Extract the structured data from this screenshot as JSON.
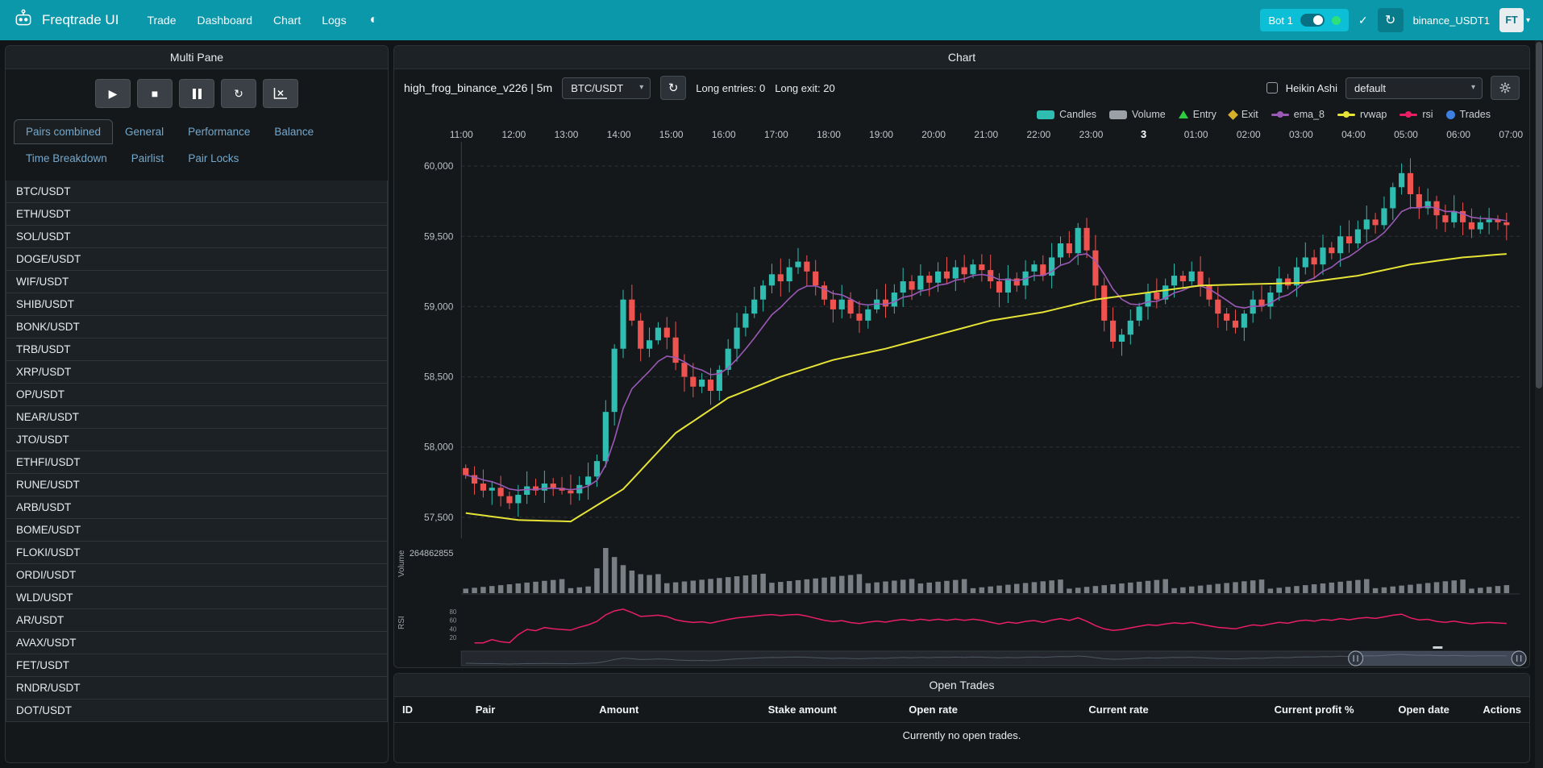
{
  "navbar": {
    "brand": "Freqtrade UI",
    "items": [
      {
        "label": "Trade"
      },
      {
        "label": "Dashboard"
      },
      {
        "label": "Chart"
      },
      {
        "label": "Logs"
      }
    ],
    "bot": {
      "name": "Bot 1"
    },
    "exchange_label": "binance_USDT1",
    "avatar_label": "FT"
  },
  "icons": {
    "theme_toggle": "◐",
    "check": "✓",
    "refresh": "↻",
    "caret": "▾",
    "play": "▶",
    "stop": "■"
  },
  "left_panel": {
    "title": "Multi Pane",
    "tabs_row1": [
      "Pairs combined",
      "General",
      "Performance",
      "Balance"
    ],
    "tabs_row2": [
      "Time Breakdown",
      "Pairlist",
      "Pair Locks"
    ],
    "active_tab": "Pairs combined",
    "pairs": [
      "BTC/USDT",
      "ETH/USDT",
      "SOL/USDT",
      "DOGE/USDT",
      "WIF/USDT",
      "SHIB/USDT",
      "BONK/USDT",
      "TRB/USDT",
      "XRP/USDT",
      "OP/USDT",
      "NEAR/USDT",
      "JTO/USDT",
      "ETHFI/USDT",
      "RUNE/USDT",
      "ARB/USDT",
      "BOME/USDT",
      "FLOKI/USDT",
      "ORDI/USDT",
      "WLD/USDT",
      "AR/USDT",
      "AVAX/USDT",
      "FET/USDT",
      "RNDR/USDT",
      "DOT/USDT"
    ]
  },
  "chart_panel": {
    "title": "Chart",
    "strategy": "high_frog_binance_v226 | 5m",
    "pair_select": "BTC/USDT",
    "long_entries": "Long entries: 0",
    "long_exit": "Long exit: 20",
    "heikin_ashi_label": "Heikin Ashi",
    "plot_config_select": "default",
    "legend": [
      {
        "label": "Candles",
        "shape": "rect",
        "color": "#2ebdb0"
      },
      {
        "label": "Volume",
        "shape": "rect",
        "color": "#9aa0a6"
      },
      {
        "label": "Entry",
        "shape": "triangle",
        "color": "#2ecc40"
      },
      {
        "label": "Exit",
        "shape": "diamond",
        "color": "#d4b02b"
      },
      {
        "label": "ema_8",
        "shape": "line",
        "color": "#9b59b6"
      },
      {
        "label": "rvwap",
        "shape": "line",
        "color": "#e6e337"
      },
      {
        "label": "rsi",
        "shape": "line",
        "color": "#e91e63"
      },
      {
        "label": "Trades",
        "shape": "circle",
        "color": "#3f7fe0"
      }
    ]
  },
  "chart_data": {
    "type": "candlestick",
    "pair": "BTC/USDT",
    "timeframe": "5m",
    "x_labels": [
      "11:00",
      "12:00",
      "13:00",
      "14:00",
      "15:00",
      "16:00",
      "17:00",
      "18:00",
      "19:00",
      "20:00",
      "21:00",
      "22:00",
      "23:00",
      "3",
      "01:00",
      "02:00",
      "03:00",
      "04:00",
      "05:00",
      "06:00",
      "07:00"
    ],
    "y_ticks": [
      57500,
      58000,
      58500,
      59000,
      59500,
      60000
    ],
    "ylim": [
      57350,
      60150
    ],
    "open_first": 57850,
    "closes": [
      57800,
      57740,
      57690,
      57710,
      57650,
      57600,
      57660,
      57720,
      57690,
      57740,
      57710,
      57690,
      57670,
      57730,
      57790,
      57900,
      58250,
      58700,
      59050,
      58900,
      58700,
      58760,
      58850,
      58780,
      58600,
      58500,
      58430,
      58480,
      58400,
      58550,
      58700,
      58850,
      58950,
      59050,
      59150,
      59230,
      59180,
      59280,
      59320,
      59250,
      59150,
      59050,
      58980,
      59050,
      58950,
      58900,
      58980,
      59050,
      59000,
      59100,
      59180,
      59120,
      59220,
      59170,
      59250,
      59200,
      59280,
      59230,
      59300,
      59260,
      59180,
      59100,
      59200,
      59150,
      59250,
      59300,
      59220,
      59350,
      59450,
      59380,
      59560,
      59400,
      59150,
      58900,
      58750,
      58800,
      58900,
      59000,
      59100,
      59050,
      59150,
      59220,
      59180,
      59250,
      59150,
      59050,
      58950,
      58900,
      58850,
      58950,
      59050,
      59000,
      59100,
      59200,
      59150,
      59280,
      59350,
      59300,
      59420,
      59380,
      59500,
      59450,
      59550,
      59620,
      59580,
      59700,
      59850,
      59950,
      59800,
      59700,
      59750,
      59650,
      59600,
      59680,
      59600,
      59550,
      59600,
      59620,
      59600,
      59580
    ],
    "rvwap_hourly": [
      57530,
      57480,
      57470,
      57700,
      58100,
      58350,
      58500,
      58620,
      58700,
      58800,
      58900,
      58960,
      59050,
      59100,
      59150,
      59160,
      59170,
      59220,
      59300,
      59350,
      59380
    ],
    "volume_axis_label": "264862855",
    "volume_label": "Volume",
    "rsi_label": "RSI",
    "rsi_ticks": [
      80,
      60,
      40,
      20
    ],
    "series_colors": {
      "up": "#2ebdb0",
      "down": "#ef5350",
      "ema_8": "#9b59b6",
      "rvwap": "#e6e337",
      "rsi": "#e91e63",
      "volume": "#8b9196"
    }
  },
  "trades_panel": {
    "title": "Open Trades",
    "columns": [
      "ID",
      "Pair",
      "Amount",
      "Stake amount",
      "Open rate",
      "Current rate",
      "Current profit %",
      "Open date",
      "Actions"
    ],
    "empty_message": "Currently no open trades."
  }
}
